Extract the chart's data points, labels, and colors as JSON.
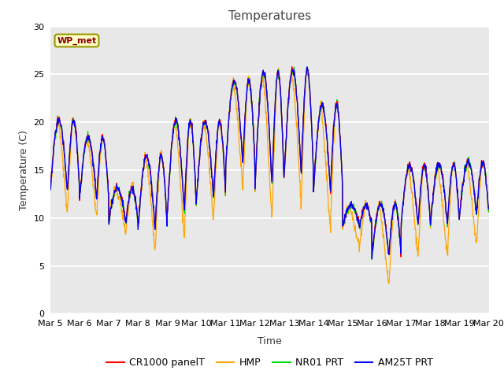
{
  "title": "Temperatures",
  "ylabel": "Temperature (C)",
  "xlabel": "Time",
  "ylim": [
    0,
    30
  ],
  "yticks": [
    0,
    5,
    10,
    15,
    20,
    25,
    30
  ],
  "xtick_labels": [
    "Mar 5",
    "Mar 6",
    "Mar 7",
    "Mar 8",
    "Mar 9",
    "Mar 10",
    "Mar 11",
    "Mar 12",
    "Mar 13",
    "Mar 14",
    "Mar 15",
    "Mar 16",
    "Mar 17",
    "Mar 18",
    "Mar 19",
    "Mar 20"
  ],
  "series_colors": {
    "CR1000 panelT": "#ff0000",
    "HMP": "#ffa500",
    "NR01 PRT": "#00dd00",
    "AM25T PRT": "#0000ff"
  },
  "legend_box_facecolor": "#ffffcc",
  "legend_box_edgecolor": "#999900",
  "legend_label": "WP_met",
  "plot_bg_color": "#e8e8e8",
  "fig_bg_color": "#ffffff",
  "grid_color": "#ffffff",
  "title_fontsize": 11,
  "label_fontsize": 9,
  "tick_fontsize": 8,
  "legend_fontsize": 9
}
